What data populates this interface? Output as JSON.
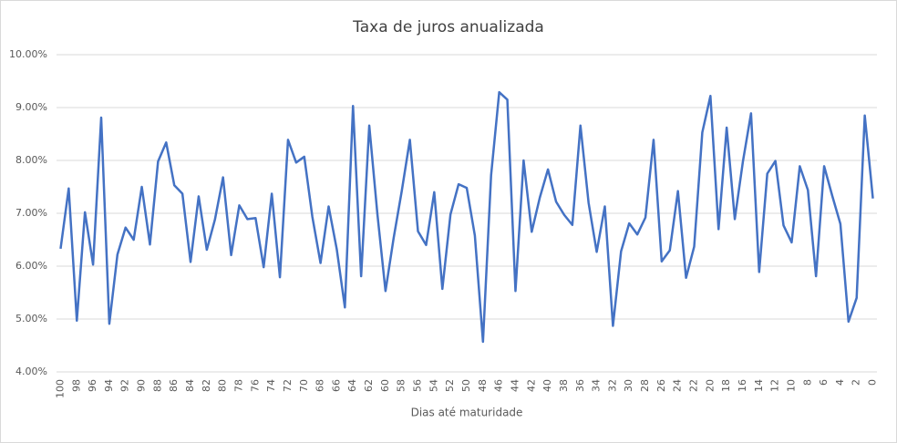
{
  "chart_data": {
    "type": "line",
    "title": "Taxa de juros anualizada",
    "x_label": "Dias até maturidade",
    "categories": [
      100,
      null,
      98,
      null,
      96,
      null,
      94,
      null,
      92,
      null,
      90,
      null,
      88,
      null,
      86,
      null,
      84,
      null,
      82,
      null,
      80,
      null,
      78,
      null,
      76,
      null,
      74,
      null,
      72,
      null,
      70,
      null,
      68,
      null,
      66,
      null,
      64,
      null,
      62,
      null,
      60,
      null,
      58,
      null,
      56,
      null,
      54,
      null,
      52,
      null,
      50,
      null,
      48,
      null,
      46,
      null,
      44,
      null,
      42,
      null,
      40,
      null,
      38,
      null,
      36,
      null,
      34,
      null,
      32,
      null,
      30,
      null,
      28,
      null,
      26,
      null,
      24,
      null,
      22,
      null,
      20,
      null,
      18,
      null,
      16,
      null,
      14,
      null,
      12,
      null,
      10,
      null,
      8,
      null,
      6,
      null,
      4,
      null,
      2,
      null,
      0
    ],
    "values": [
      6.33,
      7.47,
      4.97,
      7.02,
      6.03,
      8.81,
      4.91,
      6.22,
      6.73,
      6.5,
      7.5,
      6.41,
      7.98,
      8.34,
      7.53,
      7.37,
      6.08,
      7.32,
      6.31,
      6.88,
      7.68,
      6.21,
      7.15,
      6.89,
      6.91,
      5.98,
      7.37,
      5.79,
      8.39,
      7.96,
      8.07,
      6.93,
      6.06,
      7.13,
      6.32,
      5.22,
      9.03,
      5.81,
      8.66,
      6.99,
      5.53,
      6.53,
      7.42,
      8.39,
      6.66,
      6.4,
      7.4,
      5.57,
      6.98,
      7.55,
      7.48,
      6.58,
      4.57,
      7.72,
      9.29,
      9.15,
      5.53,
      8.0,
      6.65,
      7.3,
      7.83,
      7.22,
      6.97,
      6.78,
      8.66,
      7.2,
      6.27,
      7.13,
      4.87,
      6.28,
      6.81,
      6.6,
      6.92,
      8.39,
      6.09,
      6.3,
      7.42,
      5.78,
      6.37,
      8.53,
      9.22,
      6.7,
      8.62,
      6.89,
      7.98,
      8.89,
      5.89,
      7.75,
      7.99,
      6.77,
      6.45,
      7.89,
      7.44,
      5.81,
      7.89,
      7.33,
      6.8,
      4.95,
      5.4,
      8.85,
      7.28
    ],
    "color": "#4472c4",
    "ylim": [
      4,
      10
    ],
    "yticks": [
      {
        "value": 4,
        "label": "4.00%"
      },
      {
        "value": 5,
        "label": "5.00%"
      },
      {
        "value": 6,
        "label": "6.00%"
      },
      {
        "value": 7,
        "label": "7.00%"
      },
      {
        "value": 8,
        "label": "8.00%"
      },
      {
        "value": 9,
        "label": "9.00%"
      },
      {
        "value": 10,
        "label": "10.00%"
      }
    ],
    "grid": true
  }
}
